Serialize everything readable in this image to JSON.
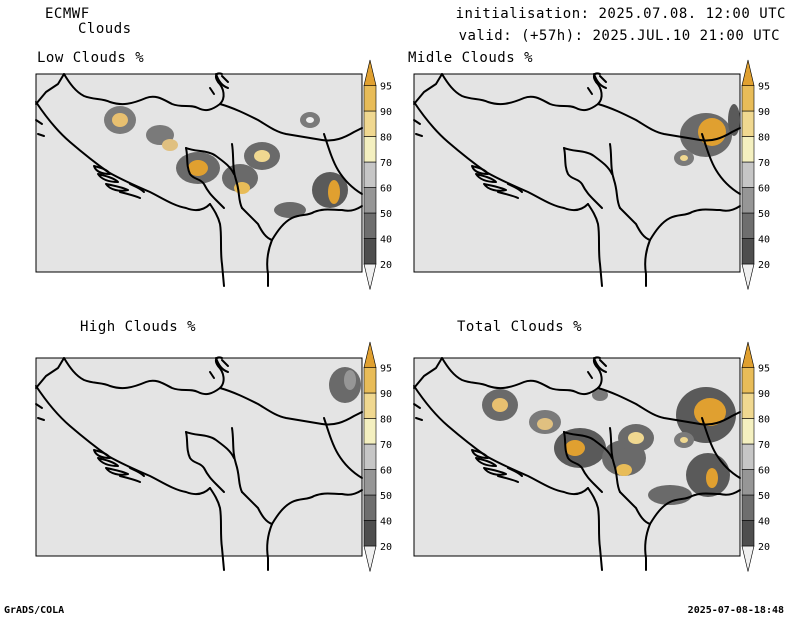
{
  "header": {
    "model": "ECMWF",
    "product": "Clouds",
    "initialisation": "initialisation: 2025.07.08. 12:00 UTC",
    "valid": "valid: (+57h): 2025.JUL.10 21:00 UTC"
  },
  "panels": [
    {
      "id": "low",
      "title": "Low Clouds %"
    },
    {
      "id": "middle",
      "title": "Midle Clouds %"
    },
    {
      "id": "high",
      "title": "High Clouds %"
    },
    {
      "id": "total",
      "title": "Total Clouds %"
    }
  ],
  "colorbar": {
    "levels": [
      "20",
      "40",
      "50",
      "60",
      "70",
      "80",
      "90",
      "95"
    ],
    "colors": [
      "#f0f0f0",
      "#4e4e4e",
      "#6e6e6e",
      "#969696",
      "#c6c6c6",
      "#f4f0c0",
      "#f0d890",
      "#e8bc58",
      "#e0a030"
    ]
  },
  "footer": {
    "left": "GrADS/COLA",
    "right": "2025-07-08-18:48"
  }
}
